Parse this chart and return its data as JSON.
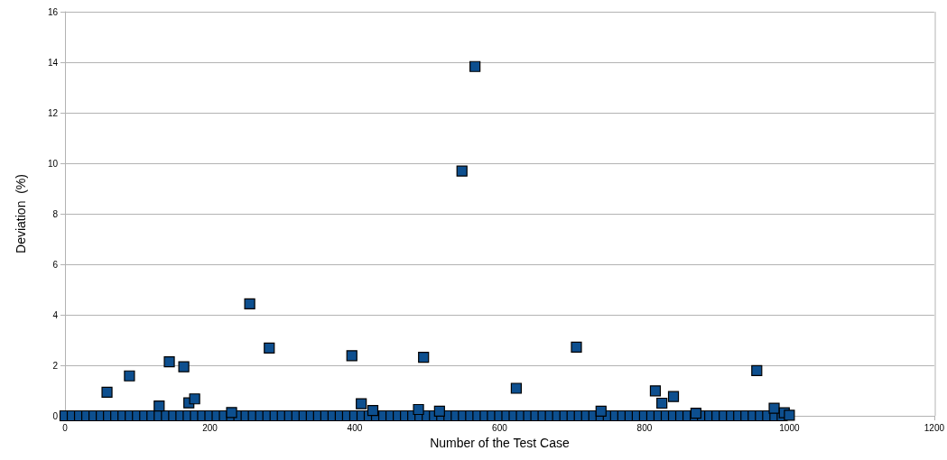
{
  "chart_data": {
    "type": "scatter",
    "xlabel": "Number of the Test Case",
    "ylabel": "Deviation  (%)",
    "xlim": [
      0,
      1200
    ],
    "xticks": [
      0,
      200,
      400,
      600,
      800,
      1000,
      1200
    ],
    "ylim": [
      0,
      16
    ],
    "yticks": [
      0,
      2,
      4,
      6,
      8,
      10,
      12,
      14,
      16
    ],
    "grid": "y",
    "marker": "square",
    "series": [
      {
        "color": "#0d4f8f",
        "x": [
          0,
          10,
          20,
          30,
          40,
          50,
          60,
          70,
          80,
          90,
          100,
          110,
          120,
          130,
          140,
          150,
          160,
          170,
          180,
          190,
          200,
          210,
          220,
          230,
          240,
          250,
          260,
          270,
          280,
          290,
          300,
          310,
          320,
          330,
          340,
          350,
          360,
          370,
          380,
          390,
          400,
          410,
          420,
          430,
          440,
          450,
          460,
          470,
          480,
          490,
          500,
          510,
          520,
          530,
          540,
          550,
          560,
          570,
          580,
          590,
          600,
          610,
          620,
          630,
          640,
          650,
          660,
          670,
          680,
          690,
          700,
          710,
          720,
          730,
          740,
          750,
          760,
          770,
          780,
          790,
          800,
          810,
          820,
          830,
          840,
          850,
          860,
          870,
          880,
          890,
          900,
          910,
          920,
          930,
          940,
          950,
          960,
          970,
          980,
          990
        ],
        "values": [
          0,
          0,
          0,
          0,
          0,
          0,
          0,
          0,
          0,
          0,
          0,
          0,
          0,
          0,
          0,
          0,
          0,
          0,
          0,
          0,
          0,
          0,
          0,
          0,
          0,
          0,
          0,
          0,
          0,
          0,
          0,
          0,
          0,
          0,
          0,
          0,
          0,
          0,
          0,
          0,
          0,
          0,
          0,
          0,
          0,
          0,
          0,
          0,
          0,
          0,
          0,
          0,
          0,
          0,
          0,
          0,
          0,
          0,
          0,
          0,
          0,
          0,
          0,
          0,
          0,
          0,
          0,
          0,
          0,
          0,
          0,
          0,
          0,
          0,
          0,
          0,
          0,
          0,
          0,
          0,
          0,
          0,
          0,
          0,
          0,
          0,
          0,
          0,
          0,
          0,
          0,
          0,
          0,
          0,
          0,
          0,
          0,
          0,
          0,
          0
        ]
      },
      {
        "color": "#0d4f8f",
        "x": [
          58,
          89,
          130,
          144,
          164,
          171,
          179,
          230,
          255,
          282,
          396,
          409,
          425,
          488,
          495,
          517,
          548,
          566,
          623,
          706,
          740,
          815,
          824,
          840,
          871,
          955,
          979,
          993,
          1000
        ],
        "values": [
          0.93,
          1.58,
          0.39,
          2.14,
          1.94,
          0.51,
          0.67,
          0.13,
          4.43,
          2.68,
          2.38,
          0.48,
          0.21,
          0.25,
          2.32,
          0.18,
          9.69,
          13.83,
          1.09,
          2.72,
          0.18,
          0.99,
          0.5,
          0.76,
          0.1,
          1.79,
          0.3,
          0.12,
          0.02
        ]
      }
    ]
  }
}
